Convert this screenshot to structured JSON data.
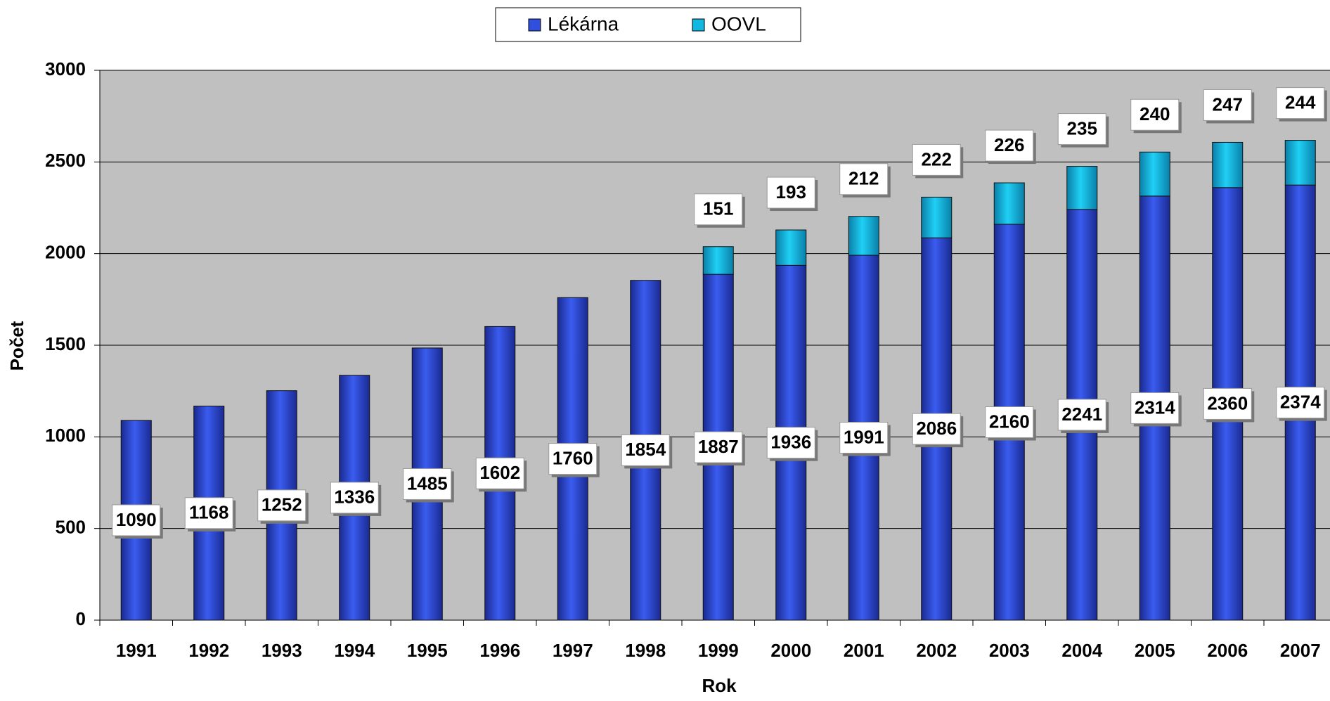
{
  "chart_data": {
    "type": "bar",
    "stacked": true,
    "x_label": "Rok",
    "y_label": "Počet",
    "categories": [
      "1991",
      "1992",
      "1993",
      "1994",
      "1995",
      "1996",
      "1997",
      "1998",
      "1999",
      "2000",
      "2001",
      "2002",
      "2003",
      "2004",
      "2005",
      "2006",
      "2007"
    ],
    "series": [
      {
        "name": "Lékárna",
        "color": "#2f4fdc",
        "values": [
          1090,
          1168,
          1252,
          1336,
          1485,
          1602,
          1760,
          1854,
          1887,
          1936,
          1991,
          2086,
          2160,
          2241,
          2314,
          2360,
          2374
        ]
      },
      {
        "name": "OOVL",
        "color": "#12b8e0",
        "values": [
          null,
          null,
          null,
          null,
          null,
          null,
          null,
          null,
          151,
          193,
          212,
          222,
          226,
          235,
          240,
          247,
          244
        ]
      }
    ],
    "ylim": [
      0,
      3000
    ],
    "yticks": [
      0,
      500,
      1000,
      1500,
      2000,
      2500,
      3000
    ],
    "grid": true,
    "legend": "top"
  }
}
